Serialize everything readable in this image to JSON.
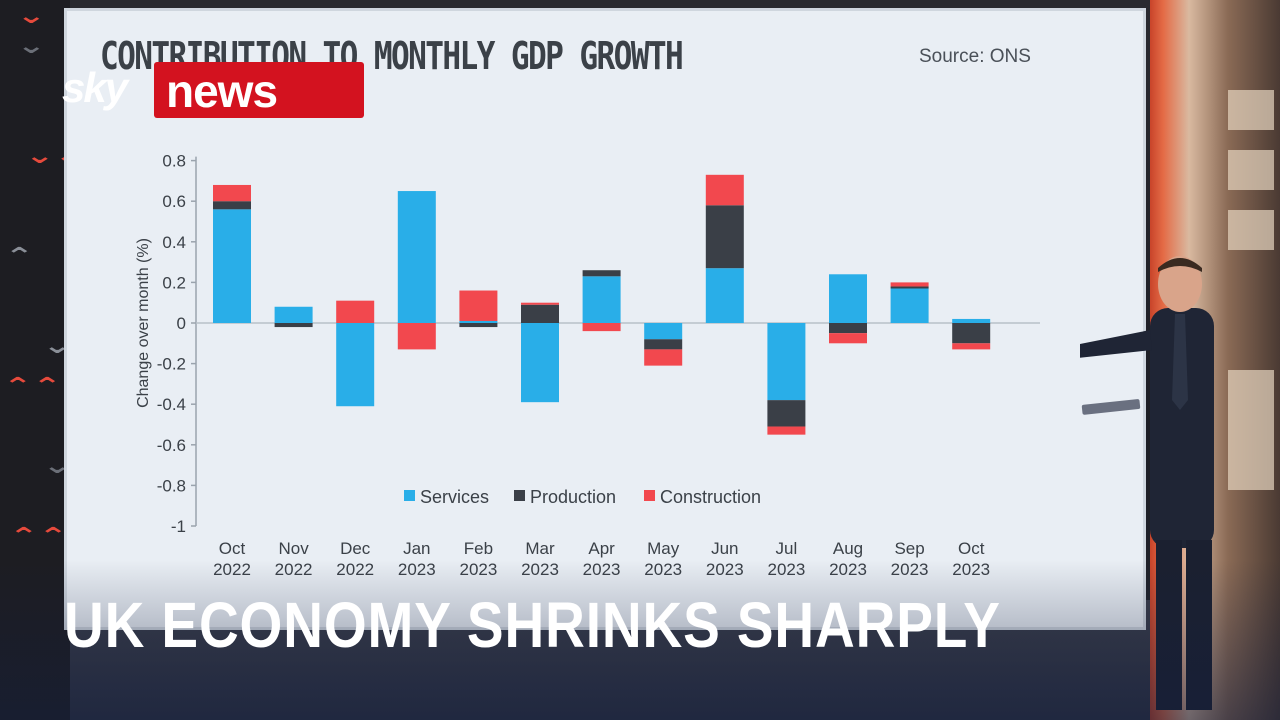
{
  "logo": {
    "brand_sky": "sky",
    "brand_news": "news"
  },
  "headline": "UK ECONOMY SHRINKS SHARPLY",
  "chart_data": {
    "type": "bar",
    "stacked": true,
    "title": "CONTRIBUTION TO MONTHLY GDP GROWTH",
    "source": "Source: ONS",
    "ylabel": "Change over month (%)",
    "ylim": [
      -1,
      0.8
    ],
    "yticks": [
      0.8,
      0.6,
      0.4,
      0.2,
      0,
      -0.2,
      -0.4,
      -0.6,
      -0.8,
      -1
    ],
    "categories": [
      [
        "Oct",
        "2022"
      ],
      [
        "Nov",
        "2022"
      ],
      [
        "Dec",
        "2022"
      ],
      [
        "Jan",
        "2023"
      ],
      [
        "Feb",
        "2023"
      ],
      [
        "Mar",
        "2023"
      ],
      [
        "Apr",
        "2023"
      ],
      [
        "May",
        "2023"
      ],
      [
        "Jun",
        "2023"
      ],
      [
        "Jul",
        "2023"
      ],
      [
        "Aug",
        "2023"
      ],
      [
        "Sep",
        "2023"
      ],
      [
        "Oct",
        "2023"
      ]
    ],
    "series": [
      {
        "name": "Services",
        "color": "#29aee8",
        "values": [
          0.56,
          0.08,
          -0.41,
          0.65,
          0.01,
          -0.39,
          0.23,
          -0.08,
          0.27,
          -0.38,
          0.24,
          0.17,
          0.02
        ]
      },
      {
        "name": "Production",
        "color": "#3a3f47",
        "values": [
          0.04,
          -0.02,
          0.0,
          0.0,
          -0.02,
          0.09,
          0.03,
          -0.05,
          0.31,
          -0.13,
          -0.05,
          0.01,
          -0.1
        ]
      },
      {
        "name": "Construction",
        "color": "#f2484e",
        "values": [
          0.08,
          0.0,
          0.11,
          -0.13,
          0.15,
          0.01,
          -0.04,
          -0.08,
          0.15,
          -0.04,
          -0.05,
          0.02,
          -0.03
        ]
      }
    ],
    "legend_position": "bottom-center",
    "grid": false
  },
  "icons": {
    "left_deco": "chevron-icon"
  }
}
